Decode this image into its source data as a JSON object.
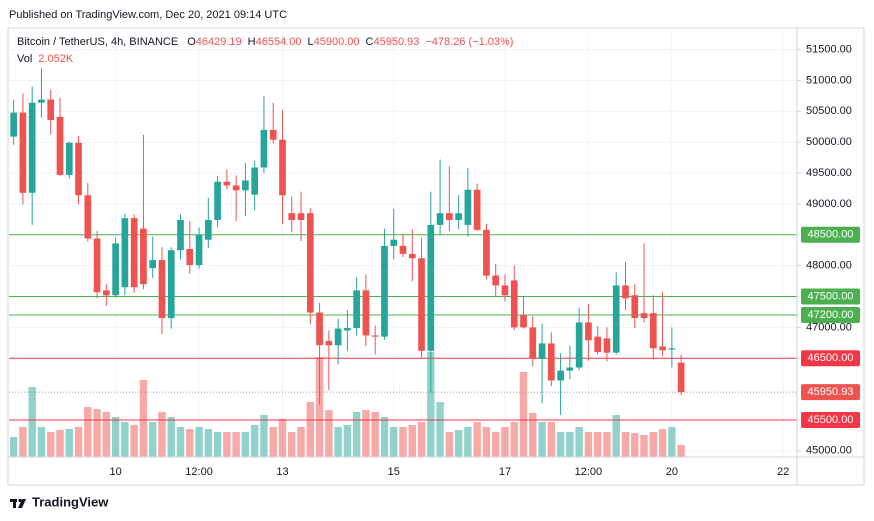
{
  "header": {
    "published": "Published on TradingView.com, Dec 20, 2021 09:14 UTC"
  },
  "footer": {
    "brand": "TradingView"
  },
  "chart_data": {
    "type": "candlestick",
    "legend": {
      "symbol": "Bitcoin / TetherUS, 4h, BINANCE",
      "open_label": "O",
      "open": "46429.19",
      "high_label": "H",
      "high": "46554.00",
      "low_label": "L",
      "low": "45900.00",
      "close_label": "C",
      "close": "45950.93",
      "change": "−478.26 (−1.03%)",
      "volume_label": "Vol",
      "volume": "2.052K"
    },
    "categories": [
      null,
      null,
      null,
      null,
      null,
      null,
      null,
      null,
      null,
      null,
      null,
      "10",
      null,
      null,
      null,
      null,
      null,
      null,
      null,
      null,
      "12:00",
      null,
      null,
      null,
      null,
      null,
      null,
      null,
      null,
      "13",
      null,
      null,
      null,
      null,
      null,
      null,
      null,
      null,
      null,
      null,
      null,
      "15",
      null,
      null,
      null,
      null,
      null,
      null,
      null,
      null,
      null,
      null,
      null,
      "17",
      null,
      null,
      null,
      null,
      null,
      null,
      null,
      null,
      "12:00",
      null,
      null,
      null,
      null,
      null,
      null,
      null,
      null,
      "20",
      null,
      null,
      null,
      null,
      null,
      null,
      null,
      null,
      null,
      null,
      null,
      "22",
      null
    ],
    "open": [
      50090,
      50480,
      49180,
      50640,
      50690,
      50410,
      49470,
      49990,
      49140,
      48440,
      47600,
      47520,
      47650,
      48770,
      48600,
      47960,
      48090,
      47150,
      48250,
      48270,
      48010,
      48420,
      48740,
      49360,
      49300,
      49220,
      49150,
      49590,
      50200,
      50040,
      48850,
      48850,
      48850,
      47240,
      46780,
      46710,
      46950,
      46990,
      47600,
      46870,
      46850,
      48320,
      48320,
      48190,
      48120,
      46620,
      48660,
      48850,
      48740,
      48660,
      49230,
      48580,
      47840,
      47680,
      47760,
      47200,
      47000,
      46490,
      46740,
      46140,
      46300,
      46350,
      47080,
      46850,
      46820,
      46590,
      47680,
      47520,
      47230,
      47230,
      46690,
      46640,
      46429.19,
      null,
      null,
      null,
      null,
      null,
      null,
      null,
      null,
      null,
      null,
      null,
      null
    ],
    "high": [
      50690,
      50790,
      50900,
      51200,
      50850,
      50720,
      50010,
      50100,
      49340,
      48560,
      47700,
      48450,
      48840,
      48830,
      50120,
      48470,
      48300,
      48300,
      48830,
      48720,
      48620,
      49100,
      49450,
      49560,
      49460,
      49660,
      49700,
      50750,
      50640,
      50520,
      49120,
      49200,
      48930,
      47400,
      46950,
      47140,
      47280,
      47810,
      47860,
      47030,
      48600,
      48920,
      48510,
      48590,
      48450,
      49200,
      49720,
      49610,
      49140,
      49580,
      49330,
      48680,
      48030,
      47860,
      48000,
      47500,
      47180,
      47060,
      46920,
      46580,
      46700,
      47320,
      47380,
      47020,
      47000,
      47890,
      48060,
      47700,
      48360,
      47520,
      47570,
      47000,
      46554,
      null,
      null,
      null,
      null,
      null,
      null,
      null,
      null,
      null,
      null,
      null,
      null
    ],
    "low": [
      49960,
      48990,
      48660,
      50400,
      50130,
      49450,
      49410,
      49000,
      48390,
      47470,
      47350,
      47480,
      47520,
      47560,
      47620,
      47800,
      46890,
      46980,
      48100,
      47870,
      47950,
      48290,
      48620,
      49240,
      48720,
      48800,
      48900,
      49500,
      49980,
      48670,
      48540,
      48400,
      47050,
      45740,
      45980,
      46400,
      46620,
      46870,
      46700,
      46560,
      46800,
      48100,
      48140,
      47750,
      46500,
      45940,
      48500,
      48560,
      48590,
      48470,
      48560,
      47780,
      47510,
      47420,
      46950,
      46980,
      46370,
      45770,
      46050,
      45580,
      46160,
      46300,
      46460,
      46560,
      46450,
      46560,
      47280,
      46990,
      47080,
      46480,
      46530,
      46350,
      45900,
      null,
      null,
      null,
      null,
      null,
      null,
      null,
      null,
      null,
      null,
      null,
      null
    ],
    "close": [
      50480,
      49180,
      50640,
      50690,
      50360,
      49470,
      49990,
      49140,
      48440,
      47570,
      47520,
      48360,
      48770,
      47650,
      47700,
      48090,
      47150,
      48250,
      48740,
      48010,
      48500,
      48740,
      49360,
      49300,
      49220,
      49380,
      49590,
      50200,
      50040,
      49140,
      48740,
      48740,
      47240,
      46710,
      46710,
      46980,
      46990,
      47600,
      46870,
      46850,
      48320,
      48420,
      48190,
      48120,
      46620,
      48660,
      48850,
      48740,
      48850,
      49230,
      48580,
      47840,
      47680,
      47520,
      47000,
      47000,
      46490,
      46740,
      46140,
      46300,
      46350,
      47080,
      46790,
      46600,
      46590,
      47680,
      47470,
      47150,
      47150,
      46660,
      46630,
      46660,
      45950.93,
      null,
      null,
      null,
      null,
      null,
      null,
      null,
      null,
      null,
      null,
      null,
      null
    ],
    "volume": [
      3420,
      5130,
      11970,
      5130,
      4275,
      4617,
      4788,
      5130,
      8550,
      8208,
      7695,
      6840,
      5985,
      5472,
      13167,
      5985,
      7695,
      6840,
      5130,
      4788,
      5130,
      4788,
      4275,
      4275,
      4275,
      4275,
      5472,
      7182,
      5130,
      6498,
      4275,
      5130,
      9405,
      17100,
      8037,
      5130,
      5472,
      7695,
      8037,
      7695,
      6840,
      5130,
      5130,
      5472,
      5985,
      17955,
      9405,
      4275,
      4617,
      5130,
      5985,
      5130,
      4275,
      5130,
      5985,
      14535,
      7524,
      5985,
      5985,
      4275,
      4275,
      5130,
      4275,
      4275,
      4275,
      7182,
      4275,
      4104,
      3762,
      4275,
      4788,
      5130,
      2052,
      null,
      null,
      null,
      null,
      null,
      null,
      null,
      null,
      null,
      null,
      null,
      null
    ],
    "up_color": "#26a69a",
    "down_color": "#ef5350",
    "volume_opacity": 0.5,
    "ylim": [
      44900,
      51850
    ],
    "yticks": [
      {
        "value": 45000,
        "label": "45000.00"
      },
      {
        "value": 47000,
        "label": "47000.00"
      },
      {
        "value": 48000,
        "label": "48000.00"
      },
      {
        "value": 49000,
        "label": "49000.00"
      },
      {
        "value": 49500,
        "label": "49500.00"
      },
      {
        "value": 50000,
        "label": "50000.00"
      },
      {
        "value": 50500,
        "label": "50500.00"
      },
      {
        "value": 51000,
        "label": "51000.00"
      },
      {
        "value": 51500,
        "label": "51500.00"
      }
    ],
    "grid": true,
    "levels": [
      {
        "value": 48500,
        "label": "48500.00",
        "color": "#4caf50"
      },
      {
        "value": 47500,
        "label": "47500.00",
        "color": "#4caf50"
      },
      {
        "value": 47200,
        "label": "47200.00",
        "color": "#4caf50"
      },
      {
        "value": 46500,
        "label": "46500.00",
        "color": "#f23645"
      },
      {
        "value": 45500,
        "label": "45500.00",
        "color": "#f23645"
      }
    ],
    "price_line": {
      "value": 45950.93,
      "label": "45950.93",
      "color": "#ef5350"
    }
  }
}
